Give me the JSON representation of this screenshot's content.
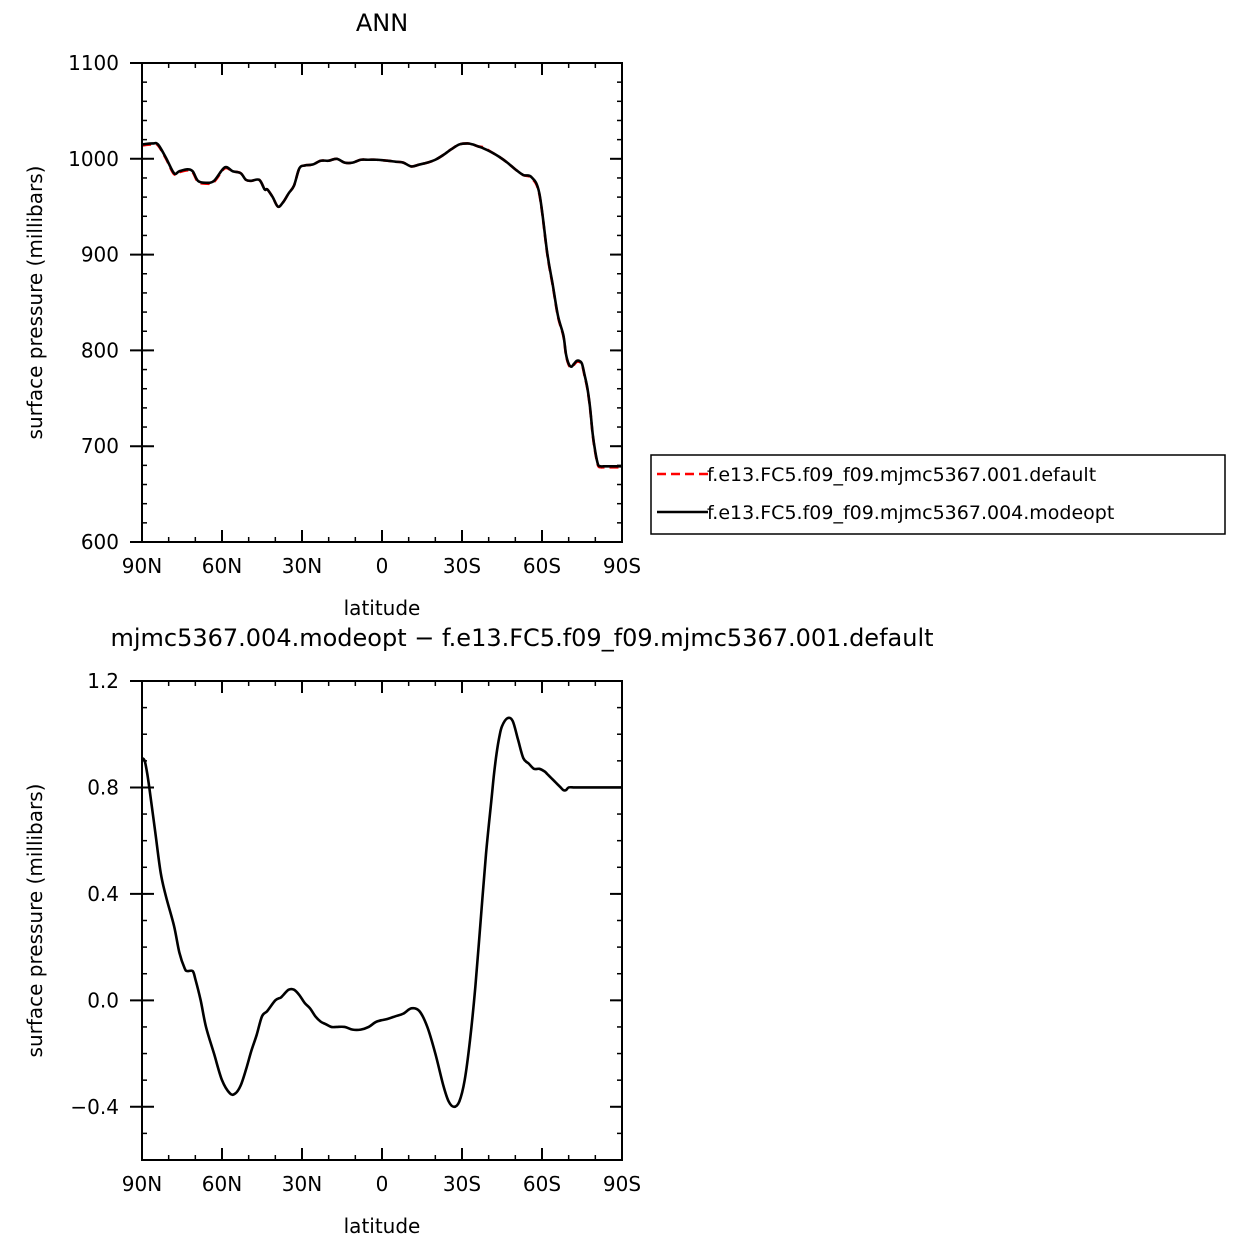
{
  "chart_data": [
    {
      "type": "line",
      "title": "ANN",
      "xlabel": "latitude",
      "ylabel": "surface pressure (millibars)",
      "xlim": [
        90,
        -90
      ],
      "ylim": [
        600,
        1100
      ],
      "x_ticks": [
        {
          "value": 90,
          "label": "90N"
        },
        {
          "value": 60,
          "label": "60N"
        },
        {
          "value": 30,
          "label": "30N"
        },
        {
          "value": 0,
          "label": "0"
        },
        {
          "value": -30,
          "label": "30S"
        },
        {
          "value": -60,
          "label": "60S"
        },
        {
          "value": -90,
          "label": "90S"
        }
      ],
      "y_ticks": [
        {
          "value": 600,
          "label": "600"
        },
        {
          "value": 700,
          "label": "700"
        },
        {
          "value": 800,
          "label": "800"
        },
        {
          "value": 900,
          "label": "900"
        },
        {
          "value": 1000,
          "label": "1000"
        },
        {
          "value": 1100,
          "label": "1100"
        }
      ],
      "grid": false,
      "legend_position": "right",
      "series": [
        {
          "name": "f.e13.FC5.f09_f09.mjmc5367.001.default",
          "color": "#ff0000",
          "dash": "dashed",
          "x": [
            90,
            86,
            84,
            81,
            78,
            76,
            73,
            71,
            69,
            66,
            63,
            59,
            56,
            53,
            51,
            49,
            46,
            44,
            43,
            41,
            39,
            37,
            35,
            33,
            31,
            29,
            26,
            23,
            20,
            17,
            14,
            11,
            8,
            5,
            2,
            -2,
            -5,
            -8,
            -11,
            -14,
            -17,
            -20,
            -23,
            -26,
            -29,
            -32,
            -34,
            -36,
            -38,
            -41,
            -44,
            -47,
            -50,
            -53,
            -56,
            -59,
            -62,
            -64,
            -66,
            -68,
            -69,
            -70,
            -71,
            -72,
            -73,
            -74,
            -75,
            -76,
            -77,
            -78,
            -79,
            -80,
            -81,
            -82,
            -83,
            -84,
            -85,
            -86,
            -87,
            -88,
            -89,
            -90
          ],
          "y": [
            1014,
            1015,
            1014,
            1000,
            984,
            986,
            988,
            986,
            976,
            974,
            976,
            990,
            987,
            985,
            978,
            977,
            978,
            968,
            968,
            960,
            950,
            955,
            964,
            972,
            990,
            993,
            994,
            998,
            998,
            1000,
            996,
            996,
            999,
            999,
            999,
            998,
            997,
            996,
            992,
            994,
            996,
            999,
            1004,
            1010,
            1015,
            1016,
            1015,
            1013,
            1012,
            1007,
            1002,
            996,
            989,
            983,
            980,
            963,
            900,
            868,
            835,
            815,
            795,
            785,
            782,
            785,
            788,
            788,
            785,
            773,
            760,
            740,
            712,
            693,
            680,
            678,
            678,
            678,
            678,
            678,
            678,
            678,
            678,
            678
          ]
        },
        {
          "name": "f.e13.FC5.f09_f09.mjmc5367.004.modeopt",
          "color": "#000000",
          "dash": "solid",
          "x": [
            90,
            86,
            84,
            81,
            78,
            76,
            73,
            71,
            69,
            66,
            63,
            59,
            56,
            53,
            51,
            49,
            46,
            44,
            43,
            41,
            39,
            37,
            35,
            33,
            31,
            29,
            26,
            23,
            20,
            17,
            14,
            11,
            8,
            5,
            2,
            -2,
            -5,
            -8,
            -11,
            -14,
            -17,
            -20,
            -23,
            -26,
            -29,
            -32,
            -34,
            -36,
            -38,
            -41,
            -44,
            -47,
            -50,
            -53,
            -56,
            -59,
            -62,
            -64,
            -66,
            -68,
            -69,
            -70,
            -71,
            -72,
            -73,
            -74,
            -75,
            -76,
            -77,
            -78,
            -79,
            -80,
            -81,
            -82,
            -83,
            -84,
            -85,
            -86,
            -87,
            -88,
            -89,
            -90
          ],
          "y": [
            1015,
            1016,
            1015,
            1001,
            985,
            987,
            989,
            987,
            977,
            975,
            977,
            991,
            987,
            985,
            978,
            977,
            978,
            968,
            968,
            960,
            950,
            955,
            964,
            972,
            990,
            993,
            994,
            998,
            998,
            1000,
            996,
            996,
            999,
            999,
            999,
            998,
            997,
            996,
            992,
            994,
            996,
            999,
            1004,
            1010,
            1015,
            1016,
            1015,
            1013,
            1011,
            1007,
            1002,
            996,
            989,
            983,
            981,
            964,
            901,
            869,
            836,
            816,
            796,
            786,
            783,
            786,
            789,
            789,
            786,
            774,
            761,
            741,
            713,
            694,
            681,
            679,
            679,
            679,
            679,
            679,
            679,
            679,
            679,
            679
          ]
        }
      ]
    },
    {
      "type": "line",
      "title": "mjmc5367.004.modeopt − f.e13.FC5.f09_f09.mjmc5367.001.default",
      "xlabel": "latitude",
      "ylabel": "surface pressure (millibars)",
      "xlim": [
        90,
        -90
      ],
      "ylim": [
        -0.6,
        1.2
      ],
      "x_ticks": [
        {
          "value": 90,
          "label": "90N"
        },
        {
          "value": 60,
          "label": "60N"
        },
        {
          "value": 30,
          "label": "30N"
        },
        {
          "value": 0,
          "label": "0"
        },
        {
          "value": -30,
          "label": "30S"
        },
        {
          "value": -60,
          "label": "60S"
        },
        {
          "value": -90,
          "label": "90S"
        }
      ],
      "y_ticks": [
        {
          "value": -0.4,
          "label": "−0.4"
        },
        {
          "value": 0.0,
          "label": "0.0"
        },
        {
          "value": 0.4,
          "label": "0.4"
        },
        {
          "value": 0.8,
          "label": "0.8"
        },
        {
          "value": 1.2,
          "label": "1.2"
        }
      ],
      "grid": false,
      "series": [
        {
          "color": "#000000",
          "dash": "solid",
          "x": [
            90,
            89,
            88,
            87,
            85,
            83,
            81,
            78,
            76,
            74,
            73,
            71,
            70,
            68,
            66,
            63,
            60,
            57,
            55,
            53,
            51,
            49,
            47,
            45,
            43,
            40,
            38,
            37,
            35,
            33,
            31,
            29,
            27,
            25,
            23,
            21,
            19,
            17,
            14,
            11,
            8,
            5,
            2,
            -2,
            -5,
            -8,
            -11,
            -14,
            -17,
            -20,
            -23,
            -25,
            -27,
            -29,
            -31,
            -33,
            -35,
            -37,
            -39,
            -41,
            -42,
            -43,
            -44,
            -45,
            -47,
            -49,
            -51,
            -53,
            -55,
            -57,
            -59,
            -61,
            -62,
            -63,
            -64,
            -65,
            -66,
            -67,
            -68,
            -69,
            -70,
            -72,
            -74,
            -76,
            -78,
            -80,
            -82,
            -84,
            -86,
            -88,
            -89,
            -90
          ],
          "y": [
            0.91,
            0.9,
            0.85,
            0.78,
            0.63,
            0.48,
            0.39,
            0.28,
            0.18,
            0.12,
            0.11,
            0.11,
            0.08,
            0.0,
            -0.1,
            -0.2,
            -0.3,
            -0.35,
            -0.35,
            -0.32,
            -0.26,
            -0.19,
            -0.13,
            -0.06,
            -0.04,
            0.0,
            0.01,
            0.02,
            0.04,
            0.04,
            0.02,
            -0.01,
            -0.03,
            -0.06,
            -0.08,
            -0.09,
            -0.1,
            -0.1,
            -0.1,
            -0.11,
            -0.11,
            -0.1,
            -0.08,
            -0.07,
            -0.06,
            -0.05,
            -0.03,
            -0.04,
            -0.1,
            -0.2,
            -0.32,
            -0.38,
            -0.4,
            -0.38,
            -0.3,
            -0.15,
            0.05,
            0.3,
            0.55,
            0.75,
            0.85,
            0.93,
            0.99,
            1.03,
            1.06,
            1.05,
            0.98,
            0.91,
            0.89,
            0.87,
            0.87,
            0.86,
            0.85,
            0.84,
            0.83,
            0.82,
            0.81,
            0.8,
            0.79,
            0.79,
            0.8,
            0.8,
            0.8,
            0.8,
            0.8,
            0.8,
            0.8,
            0.8,
            0.8,
            0.8,
            0.8,
            0.8
          ]
        }
      ]
    }
  ]
}
